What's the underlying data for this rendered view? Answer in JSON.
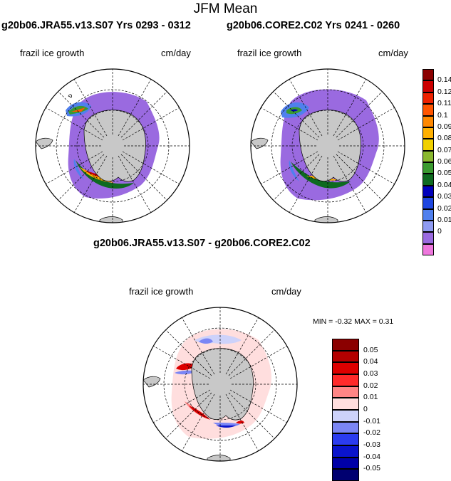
{
  "figure": {
    "title": "JFM Mean"
  },
  "panels": [
    {
      "title": "g20b06.JRA55.v13.S07  Yrs 0293 - 0312",
      "variable": "frazil ice growth",
      "units": "cm/day"
    },
    {
      "title": "g20b06.CORE2.C02  Yrs 0241 - 0260",
      "variable": "frazil ice growth",
      "units": "cm/day"
    },
    {
      "title": "g20b06.JRA55.v13.S07 - g20b06.CORE2.C02",
      "variable": "frazil ice growth",
      "units": "cm/day",
      "stats": "MIN =  -0.32 MAX =   0.31"
    }
  ],
  "colorbars": {
    "mean": {
      "labels": [
        "0.14",
        "0.12",
        "0.11",
        "0.1",
        "0.09",
        "0.08",
        "0.07",
        "0.06",
        "0.05",
        "0.04",
        "0.03",
        "0.02",
        "0.01",
        "0"
      ],
      "colors": [
        "#8b0000",
        "#cc0000",
        "#ee2200",
        "#ff5500",
        "#ff8800",
        "#ffb000",
        "#f0d000",
        "#8ab830",
        "#3a9a30",
        "#0e6a20",
        "#0000bb",
        "#1e46e0",
        "#5080ee",
        "#8f9bf2",
        "#9a6ae0",
        "#ee77dd"
      ]
    },
    "diff": {
      "labels": [
        "0.05",
        "0.04",
        "0.03",
        "0.02",
        "0.01",
        "0",
        "-0.01",
        "-0.02",
        "-0.03",
        "-0.04",
        "-0.05"
      ],
      "colors": [
        "#8b0000",
        "#b40000",
        "#dd0000",
        "#ff2a2a",
        "#ff8585",
        "#ffdede",
        "#cdd2fa",
        "#7b86f5",
        "#2b3cf0",
        "#0a14cc",
        "#0000a8",
        "#000070"
      ]
    }
  }
}
